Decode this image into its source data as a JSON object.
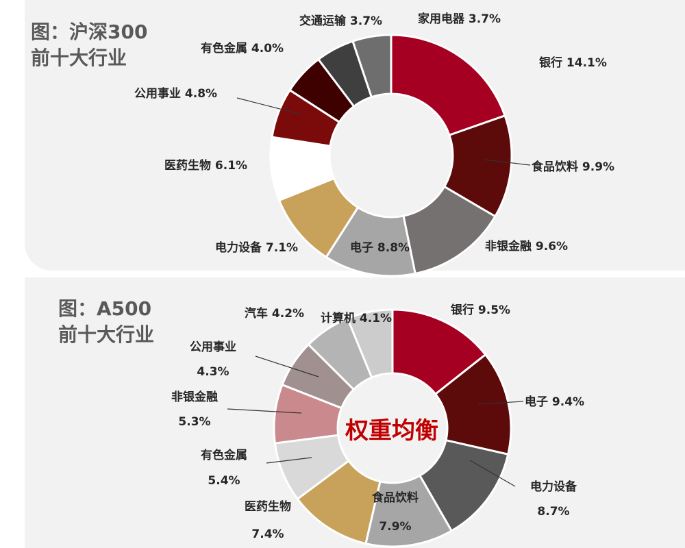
{
  "charts": {
    "top": {
      "heading_line1": "图：沪深300",
      "heading_line2": "前十大行业"
    },
    "bottom": {
      "heading_line1": "图：A500",
      "heading_line2": "前十大行业",
      "center_text": "权重均衡"
    }
  },
  "chart_data": [
    {
      "type": "pie",
      "title": "图：沪深300 前十大行业",
      "donut": true,
      "unit": "%",
      "slices": [
        {
          "label": "银行",
          "value": 14.1,
          "color": "#a50021"
        },
        {
          "label": "食品饮料",
          "value": 9.9,
          "color": "#5c0a0a"
        },
        {
          "label": "非银金融",
          "value": 9.6,
          "color": "#767171"
        },
        {
          "label": "电子",
          "value": 8.8,
          "color": "#a6a6a6"
        },
        {
          "label": "电力设备",
          "value": 7.1,
          "color": "#c8a25a"
        },
        {
          "label": "医药生物",
          "value": 6.1,
          "color": "#ffffff"
        },
        {
          "label": "公用事业",
          "value": 4.8,
          "color": "#7b0a0a"
        },
        {
          "label": "有色金属",
          "value": 4.0,
          "color": "#3f0000"
        },
        {
          "label": "交通运输",
          "value": 3.7,
          "color": "#3f3f3f"
        },
        {
          "label": "家用电器",
          "value": 3.7,
          "color": "#6e6e6e"
        }
      ]
    },
    {
      "type": "pie",
      "title": "图：A500 前十大行业",
      "donut": true,
      "unit": "%",
      "slices": [
        {
          "label": "银行",
          "value": 9.5,
          "color": "#a50021"
        },
        {
          "label": "电子",
          "value": 9.4,
          "color": "#5c0a0a"
        },
        {
          "label": "电力设备",
          "value": 8.7,
          "color": "#595959"
        },
        {
          "label": "食品饮料",
          "value": 7.9,
          "color": "#a6a6a6"
        },
        {
          "label": "医药生物",
          "value": 7.4,
          "color": "#c8a25a"
        },
        {
          "label": "有色金属",
          "value": 5.4,
          "color": "#d9d9d9"
        },
        {
          "label": "非银金融",
          "value": 5.3,
          "color": "#c9898d"
        },
        {
          "label": "公用事业",
          "value": 4.3,
          "color": "#a09090"
        },
        {
          "label": "汽车",
          "value": 4.2,
          "color": "#b4b4b4"
        },
        {
          "label": "计算机",
          "value": 4.1,
          "color": "#cccccc"
        }
      ]
    }
  ]
}
